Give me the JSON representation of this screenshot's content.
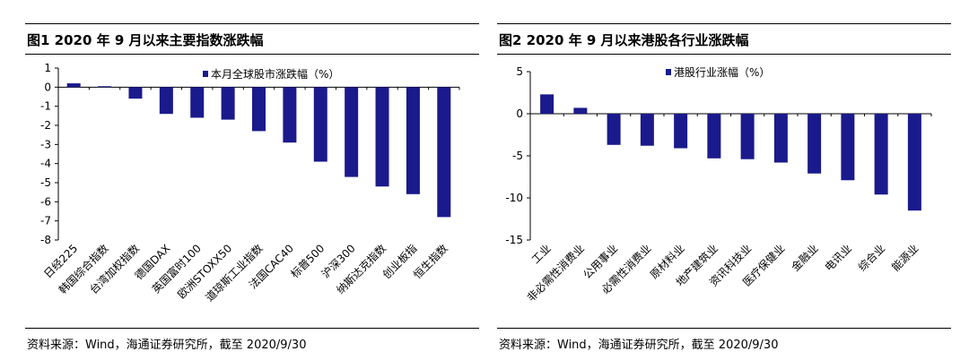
{
  "colors": {
    "bar": "#1a1a8c",
    "axis": "#000000"
  },
  "charts": [
    {
      "figure_title": "图1  2020 年 9 月以来主要指数涨跌幅",
      "source": "资料来源：Wind，海通证券研究所，截至 2020/9/30"
    },
    {
      "figure_title": "图2  2020 年 9 月以来港股各行业涨跌幅",
      "source": "资料来源：Wind，海通证券研究所，截至 2020/9/30"
    }
  ],
  "chart_data": [
    {
      "type": "bar",
      "legend": "本月全球股市涨跌幅（%）",
      "legend_position": "top-center",
      "categories": [
        "日经225",
        "韩国综合指数",
        "台湾加权指数",
        "德国DAX",
        "英国富时100",
        "欧洲STOXX50",
        "道琼斯工业指数",
        "法国CAC40",
        "标普500",
        "沪深300",
        "纳斯达克指数",
        "创业板指",
        "恒生指数"
      ],
      "values": [
        0.2,
        0.05,
        -0.6,
        -1.4,
        -1.6,
        -1.7,
        -2.3,
        -2.9,
        -3.9,
        -4.7,
        -5.2,
        -5.6,
        -6.8
      ],
      "ylim": [
        -8,
        1
      ],
      "yticks": [
        1,
        0,
        -1,
        -2,
        -3,
        -4,
        -5,
        -6,
        -7,
        -8
      ],
      "grid": false
    },
    {
      "type": "bar",
      "legend": "港股行业涨幅（%）",
      "legend_position": "top-center",
      "categories": [
        "工业",
        "非必需性消费业",
        "公用事业",
        "必需性消费业",
        "原材料业",
        "地产建筑业",
        "资讯科技业",
        "医疗保健业",
        "金融业",
        "电讯业",
        "综合业",
        "能源业"
      ],
      "values": [
        2.3,
        0.7,
        -3.7,
        -3.8,
        -4.1,
        -5.3,
        -5.4,
        -5.8,
        -7.1,
        -7.9,
        -9.6,
        -11.5
      ],
      "ylim": [
        -15,
        5
      ],
      "yticks": [
        5,
        0,
        -5,
        -10,
        -15
      ],
      "grid": false
    }
  ]
}
